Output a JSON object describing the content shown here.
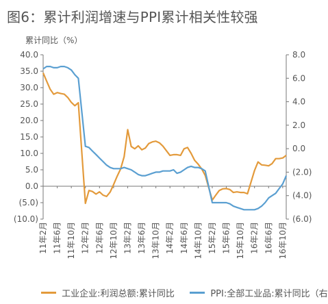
{
  "title": "图6：累计利润增速与PPI累计相关性较强",
  "chart_data": {
    "type": "line",
    "ylabel": "累计同比（%）",
    "ylim_left": [
      -10,
      40
    ],
    "ylim_right": [
      -6,
      8
    ],
    "yticks_left": [
      "40.0",
      "35.0",
      "30.0",
      "25.0",
      "20.0",
      "15.0",
      "10.0",
      "5.0",
      "0.0",
      "(5.0)",
      "(10.0)"
    ],
    "yticks_right": [
      "8.0",
      "6.0",
      "4.0",
      "2.0",
      "0.0",
      "(2.0)",
      "(4.0)",
      "(6.0)"
    ],
    "x_tick_labels": [
      "11年2月",
      "11年6月",
      "11年10月",
      "12年2月",
      "12年6月",
      "12年10月",
      "13年2月",
      "13年6月",
      "13年10月",
      "14年2月",
      "14年6月",
      "14年10月",
      "15年2月",
      "15年6月",
      "15年10月",
      "16年2月",
      "16年6月",
      "16年10月"
    ],
    "x_range": [
      "2011-02",
      "2016-11"
    ],
    "series": [
      {
        "name": "工业企业:利润总额:累计同比",
        "axis": "left",
        "color": "#e39a3b",
        "points": [
          [
            "2011-02",
            34.5
          ],
          [
            "2011-03",
            32.0
          ],
          [
            "2011-04",
            29.5
          ],
          [
            "2011-05",
            28.0
          ],
          [
            "2011-06",
            28.5
          ],
          [
            "2011-07",
            28.2
          ],
          [
            "2011-08",
            28.0
          ],
          [
            "2011-09",
            27.0
          ],
          [
            "2011-10",
            25.5
          ],
          [
            "2011-11",
            24.5
          ],
          [
            "2011-12",
            25.4
          ],
          [
            "2012-02",
            -5.2
          ],
          [
            "2012-03",
            -1.3
          ],
          [
            "2012-04",
            -1.6
          ],
          [
            "2012-05",
            -2.4
          ],
          [
            "2012-06",
            -1.7
          ],
          [
            "2012-07",
            -2.7
          ],
          [
            "2012-08",
            -3.1
          ],
          [
            "2012-09",
            -1.8
          ],
          [
            "2012-10",
            0.5
          ],
          [
            "2012-11",
            3.0
          ],
          [
            "2012-12",
            5.3
          ],
          [
            "2013-01",
            9.0
          ],
          [
            "2013-02",
            17.2
          ],
          [
            "2013-03",
            12.1
          ],
          [
            "2013-04",
            11.4
          ],
          [
            "2013-05",
            12.3
          ],
          [
            "2013-06",
            11.1
          ],
          [
            "2013-07",
            11.6
          ],
          [
            "2013-08",
            13.0
          ],
          [
            "2013-09",
            13.5
          ],
          [
            "2013-10",
            13.7
          ],
          [
            "2013-11",
            13.2
          ],
          [
            "2013-12",
            12.2
          ],
          [
            "2014-02",
            9.4
          ],
          [
            "2014-03",
            9.6
          ],
          [
            "2014-04",
            9.6
          ],
          [
            "2014-05",
            9.4
          ],
          [
            "2014-06",
            11.4
          ],
          [
            "2014-07",
            11.8
          ],
          [
            "2014-08",
            10.0
          ],
          [
            "2014-09",
            7.9
          ],
          [
            "2014-10",
            6.7
          ],
          [
            "2014-11",
            5.3
          ],
          [
            "2014-12",
            3.3
          ],
          [
            "2015-02",
            -4.2
          ],
          [
            "2015-03",
            -2.7
          ],
          [
            "2015-04",
            -1.3
          ],
          [
            "2015-05",
            -0.8
          ],
          [
            "2015-06",
            -0.7
          ],
          [
            "2015-07",
            -1.0
          ],
          [
            "2015-08",
            -1.9
          ],
          [
            "2015-09",
            -1.7
          ],
          [
            "2015-10",
            -1.9
          ],
          [
            "2015-11",
            -1.9
          ],
          [
            "2015-12",
            -2.3
          ],
          [
            "2016-02",
            4.8
          ],
          [
            "2016-03",
            7.4
          ],
          [
            "2016-04",
            6.5
          ],
          [
            "2016-05",
            6.4
          ],
          [
            "2016-06",
            6.2
          ],
          [
            "2016-07",
            6.9
          ],
          [
            "2016-08",
            8.4
          ],
          [
            "2016-09",
            8.4
          ],
          [
            "2016-10",
            8.6
          ],
          [
            "2016-11",
            9.4
          ]
        ]
      },
      {
        "name": "PPI:全部工业品:累计同比（右）",
        "axis": "right",
        "color": "#5a9fd1",
        "points": [
          [
            "2011-02",
            6.8
          ],
          [
            "2011-03",
            7.0
          ],
          [
            "2011-04",
            7.0
          ],
          [
            "2011-05",
            6.9
          ],
          [
            "2011-06",
            6.9
          ],
          [
            "2011-07",
            7.0
          ],
          [
            "2011-08",
            7.0
          ],
          [
            "2011-09",
            6.9
          ],
          [
            "2011-10",
            6.7
          ],
          [
            "2011-11",
            6.3
          ],
          [
            "2011-12",
            6.0
          ],
          [
            "2012-02",
            0.2
          ],
          [
            "2012-03",
            0.1
          ],
          [
            "2012-04",
            -0.2
          ],
          [
            "2012-05",
            -0.5
          ],
          [
            "2012-06",
            -0.8
          ],
          [
            "2012-07",
            -1.1
          ],
          [
            "2012-08",
            -1.4
          ],
          [
            "2012-09",
            -1.6
          ],
          [
            "2012-10",
            -1.7
          ],
          [
            "2012-11",
            -1.7
          ],
          [
            "2012-12",
            -1.7
          ],
          [
            "2013-01",
            -1.6
          ],
          [
            "2013-02",
            -1.7
          ],
          [
            "2013-03",
            -1.8
          ],
          [
            "2013-04",
            -2.0
          ],
          [
            "2013-05",
            -2.2
          ],
          [
            "2013-06",
            -2.3
          ],
          [
            "2013-07",
            -2.3
          ],
          [
            "2013-08",
            -2.2
          ],
          [
            "2013-09",
            -2.1
          ],
          [
            "2013-10",
            -2.0
          ],
          [
            "2013-11",
            -2.0
          ],
          [
            "2013-12",
            -1.9
          ],
          [
            "2014-02",
            -1.9
          ],
          [
            "2014-03",
            -1.8
          ],
          [
            "2014-04",
            -2.1
          ],
          [
            "2014-05",
            -2.0
          ],
          [
            "2014-06",
            -1.8
          ],
          [
            "2014-07",
            -1.6
          ],
          [
            "2014-08",
            -1.5
          ],
          [
            "2014-09",
            -1.6
          ],
          [
            "2014-10",
            -1.6
          ],
          [
            "2014-11",
            -1.7
          ],
          [
            "2014-12",
            -1.9
          ],
          [
            "2015-02",
            -4.6
          ],
          [
            "2015-03",
            -4.6
          ],
          [
            "2015-04",
            -4.6
          ],
          [
            "2015-05",
            -4.6
          ],
          [
            "2015-06",
            -4.6
          ],
          [
            "2015-07",
            -4.7
          ],
          [
            "2015-08",
            -4.9
          ],
          [
            "2015-09",
            -5.0
          ],
          [
            "2015-10",
            -5.1
          ],
          [
            "2015-11",
            -5.2
          ],
          [
            "2015-12",
            -5.2
          ],
          [
            "2016-02",
            -5.2
          ],
          [
            "2016-03",
            -5.1
          ],
          [
            "2016-04",
            -4.9
          ],
          [
            "2016-05",
            -4.6
          ],
          [
            "2016-06",
            -4.2
          ],
          [
            "2016-07",
            -4.0
          ],
          [
            "2016-08",
            -3.8
          ],
          [
            "2016-09",
            -3.4
          ],
          [
            "2016-10",
            -3.0
          ],
          [
            "2016-11",
            -2.3
          ]
        ]
      }
    ],
    "legend_position": "bottom",
    "grid": false
  }
}
